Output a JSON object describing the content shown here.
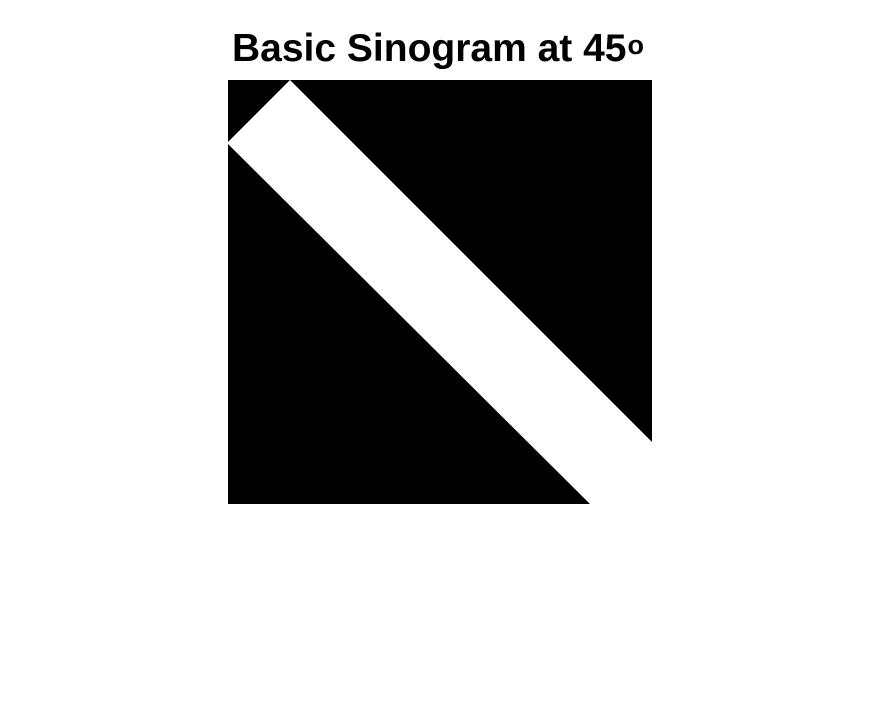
{
  "figure": {
    "title_text": "Basic Sinogram at 45",
    "title_superscript": "o"
  },
  "image": {
    "colormap": "gray",
    "colors": {
      "background": "#000000",
      "band": "#ffffff",
      "page": "#ffffff"
    }
  }
}
